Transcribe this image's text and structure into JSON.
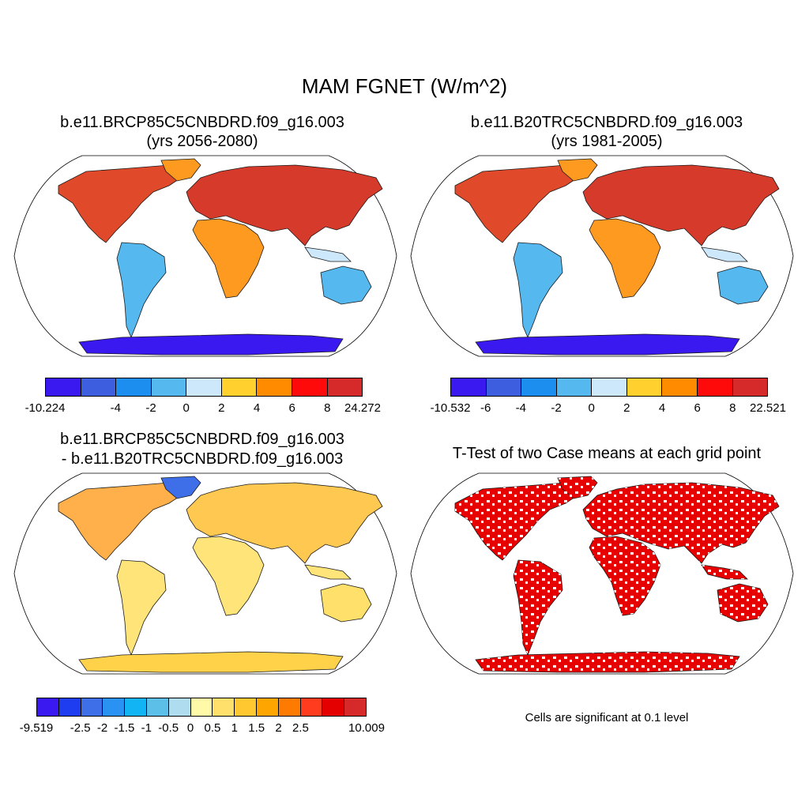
{
  "figure": {
    "title": "MAM FGNET (W/m^2)"
  },
  "panels": [
    {
      "id": "future",
      "title_line1": "b.e11.BRCP85C5CNBDRD.f09_g16.003",
      "title_line2": "(yrs 2056-2080)",
      "colorbar": {
        "colors": [
          "#3a19f0",
          "#3e5ee0",
          "#1c8ef0",
          "#55b8ef",
          "#cde8fa",
          "#ffd02e",
          "#ff8c00",
          "#ff0a0a",
          "#d62a2a"
        ],
        "labels": [
          "-10.224",
          "-4",
          "-2",
          "0",
          "2",
          "4",
          "6",
          "8",
          "24.272"
        ],
        "label_slots": [
          0,
          2,
          3,
          4,
          5,
          6,
          7,
          8,
          9
        ]
      }
    },
    {
      "id": "historical",
      "title_line1": "b.e11.B20TRC5CNBDRD.f09_g16.003",
      "title_line2": "(yrs 1981-2005)",
      "colorbar": {
        "colors": [
          "#3a19f0",
          "#3e5ee0",
          "#1c8ef0",
          "#55b8ef",
          "#cde8fa",
          "#ffd02e",
          "#ff8c00",
          "#ff0a0a",
          "#d62a2a"
        ],
        "labels": [
          "-10.532",
          "-6",
          "-4",
          "-2",
          "0",
          "2",
          "4",
          "6",
          "8",
          "22.521"
        ],
        "label_slots": [
          0,
          1,
          2,
          3,
          4,
          5,
          6,
          7,
          8,
          9
        ]
      }
    },
    {
      "id": "difference",
      "title_line1": "b.e11.BRCP85C5CNBDRD.f09_g16.003",
      "title_line2": "- b.e11.B20TRC5CNBDRD.f09_g16.003",
      "colorbar": {
        "colors": [
          "#3a19f0",
          "#1e3cf0",
          "#3e6ee8",
          "#2a92f2",
          "#12b4f4",
          "#5cbfe8",
          "#b0dcef",
          "#fff9a8",
          "#ffe06a",
          "#ffc830",
          "#ffa500",
          "#ff7a00",
          "#ff3c1e",
          "#e40000",
          "#d62a2a"
        ],
        "labels": [
          "-9.519",
          "-2.5",
          "-2",
          "-1.5",
          "-1",
          "-0.5",
          "0",
          "0.5",
          "1",
          "1.5",
          "2",
          "2.5",
          "10.009"
        ],
        "label_slots": [
          0,
          2,
          3,
          4,
          5,
          6,
          7,
          8,
          9,
          10,
          11,
          12,
          15
        ]
      }
    },
    {
      "id": "ttest",
      "title_line1": "T-Test of two Case means at each grid point",
      "note": "Cells are significant at 0.1 level"
    }
  ],
  "style": {
    "land_future": "#e04a2a",
    "land_hist": "#e04a2a",
    "land_diff": "#ffe47a",
    "land_ttest": "#e60000",
    "cool_south": "#55b8ef",
    "antarctica": "#3a19f0"
  }
}
